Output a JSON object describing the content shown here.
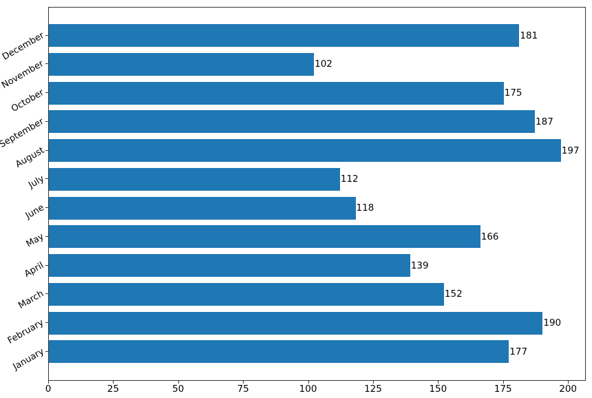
{
  "chart_data": {
    "type": "bar",
    "orientation": "horizontal",
    "title": "",
    "xlabel": "",
    "ylabel": "",
    "categories": [
      "January",
      "February",
      "March",
      "April",
      "May",
      "June",
      "July",
      "August",
      "September",
      "October",
      "November",
      "December"
    ],
    "values": [
      177,
      190,
      152,
      139,
      166,
      118,
      112,
      197,
      187,
      175,
      102,
      181
    ],
    "category_axis_order": "bottom-to-top",
    "show_value_labels": true,
    "x_ticks": [
      0,
      25,
      50,
      75,
      100,
      125,
      150,
      175,
      200
    ],
    "xlim": [
      0,
      206.85
    ],
    "grid": false,
    "legend": null,
    "bar_color": "#1f77b4",
    "axis_color": "#333333"
  }
}
